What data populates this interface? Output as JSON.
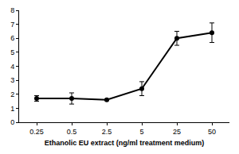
{
  "chart_data": {
    "type": "line",
    "x_label": "Ethanolic EU extract (ng/ml treatment medium)",
    "categories": [
      "0.25",
      "0.5",
      "2.5",
      "5",
      "25",
      "50"
    ],
    "values": [
      1.7,
      1.7,
      1.6,
      2.4,
      6.0,
      6.4
    ],
    "errors": [
      0.2,
      0.4,
      0.05,
      0.5,
      0.5,
      0.7
    ],
    "color": "#000000",
    "marker": "circle",
    "ylim": [
      0,
      8
    ],
    "yticks": [
      0,
      1,
      2,
      3,
      4,
      5,
      6,
      7,
      8
    ],
    "grid": false
  }
}
